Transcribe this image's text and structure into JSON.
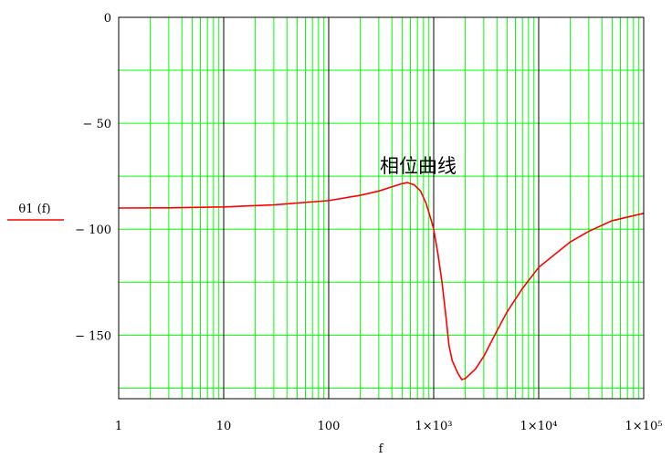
{
  "chart_data": {
    "type": "line",
    "xscale": "log",
    "xlim": [
      1,
      100000
    ],
    "ylim": [
      -180,
      0
    ],
    "grid": true,
    "xlabel": "f",
    "ylabel": "θ1 (f)",
    "annotation": "相位曲线",
    "x_ticks": [
      {
        "value": 1,
        "label": "1"
      },
      {
        "value": 10,
        "label": "10"
      },
      {
        "value": 100,
        "label": "100"
      },
      {
        "value": 1000,
        "label": "1×10³"
      },
      {
        "value": 10000,
        "label": "1×10⁴"
      },
      {
        "value": 100000,
        "label": "1×10⁵"
      }
    ],
    "y_ticks": [
      {
        "value": 0,
        "label": "0"
      },
      {
        "value": -50,
        "label": "− 50"
      },
      {
        "value": -100,
        "label": "− 100"
      },
      {
        "value": -150,
        "label": "− 150"
      }
    ],
    "series": [
      {
        "color": "#ff0000",
        "points": [
          [
            1,
            -90
          ],
          [
            3,
            -89.9
          ],
          [
            10,
            -89.5
          ],
          [
            30,
            -88.5
          ],
          [
            100,
            -86.5
          ],
          [
            200,
            -84
          ],
          [
            300,
            -82
          ],
          [
            400,
            -80
          ],
          [
            500,
            -78.5
          ],
          [
            560,
            -78
          ],
          [
            650,
            -79
          ],
          [
            750,
            -82
          ],
          [
            850,
            -88
          ],
          [
            950,
            -96
          ],
          [
            1000,
            -100
          ],
          [
            1100,
            -112
          ],
          [
            1200,
            -125
          ],
          [
            1300,
            -140
          ],
          [
            1400,
            -155
          ],
          [
            1500,
            -162
          ],
          [
            1700,
            -168
          ],
          [
            1850,
            -171
          ],
          [
            2000,
            -170.5
          ],
          [
            2500,
            -166
          ],
          [
            3000,
            -160
          ],
          [
            4000,
            -148
          ],
          [
            5000,
            -139
          ],
          [
            7000,
            -128
          ],
          [
            10000,
            -118
          ],
          [
            20000,
            -106
          ],
          [
            30000,
            -101
          ],
          [
            50000,
            -96
          ],
          [
            100000,
            -92.5
          ]
        ]
      }
    ],
    "colors": {
      "grid_major": "#000000",
      "grid_minor": "#00ff00",
      "line": "#ff0000"
    }
  }
}
